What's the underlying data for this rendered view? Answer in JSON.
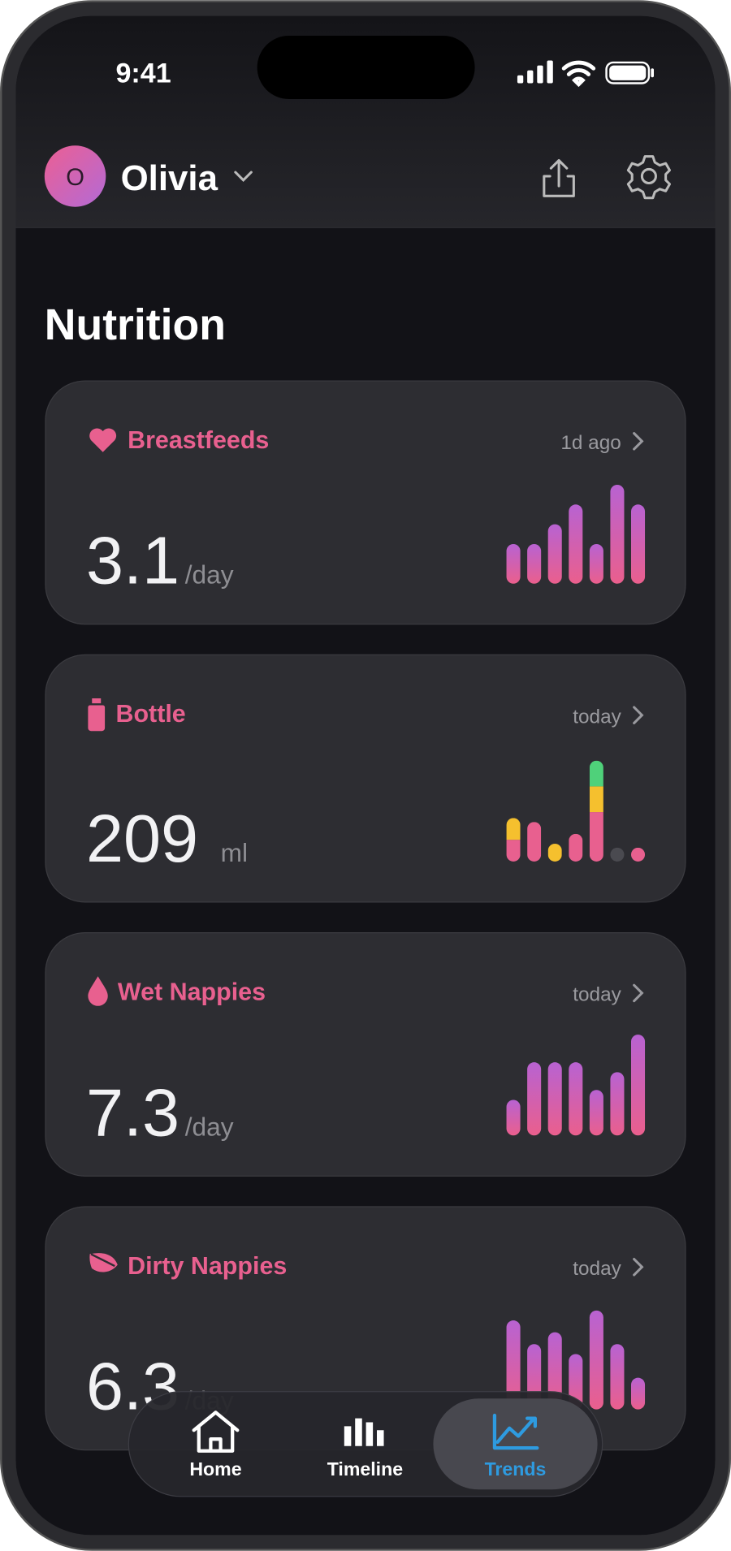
{
  "status_bar": {
    "time": "9:41"
  },
  "header": {
    "avatar_initial": "O",
    "name": "Olivia"
  },
  "section_title": "Nutrition",
  "cards": [
    {
      "title": "Breastfeeds",
      "updated": "1d ago",
      "value": "3.1",
      "unit": "/day",
      "bars": [
        40,
        40,
        60,
        80,
        40,
        100,
        80
      ]
    },
    {
      "title": "Bottle",
      "updated": "today",
      "value": "209",
      "unit": "ml",
      "segment_colors": [
        "#e8608f",
        "#f5c02e",
        "#4fd17a"
      ],
      "stacked_bars": [
        [
          22,
          22
        ],
        [
          40
        ],
        [
          0,
          18
        ],
        [
          28
        ],
        [
          50,
          26,
          26
        ],
        null,
        [
          14
        ]
      ]
    },
    {
      "title": "Wet Nappies",
      "updated": "today",
      "value": "7.3",
      "unit": "/day",
      "bars": [
        36,
        74,
        74,
        74,
        46,
        64,
        102
      ]
    },
    {
      "title": "Dirty Nappies",
      "updated": "today",
      "value": "6.3",
      "unit": "/day",
      "bars": [
        90,
        66,
        78,
        56,
        100,
        66,
        32
      ]
    }
  ],
  "nav": [
    {
      "label": "Home",
      "active": false
    },
    {
      "label": "Timeline",
      "active": false
    },
    {
      "label": "Trends",
      "active": true
    }
  ]
}
